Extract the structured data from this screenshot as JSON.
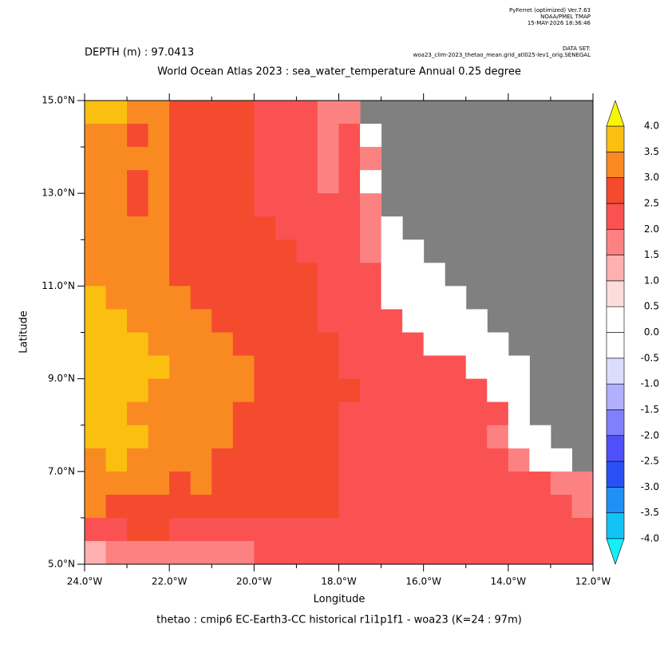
{
  "chart_data": {
    "type": "heatmap",
    "title": "World Ocean Atlas 2023 : sea_water_temperature Annual  0.25 degree",
    "subtitle": "DEPTH (m) : 97.0413",
    "header": [
      "PyFerret (optimized) Ver.7.63",
      "NOAA/PMEL TMAP",
      "15-MAY-2026 18:36:46"
    ],
    "dataset_label": "DATA SET:",
    "dataset": "woa23_clim-2023_thetao_mean.grid_atl025-lev1_orig.SENEGAL",
    "footer": "thetao : cmip6 EC-Earth3-CC historical r1i1p1f1 - woa23  (K=24 : 97m)",
    "xlabel": "Longitude",
    "ylabel": "Latitude",
    "xlim": [
      -24,
      -12
    ],
    "ylim": [
      5,
      15
    ],
    "xticks": [
      {
        "value": -24,
        "label": "24.0°W"
      },
      {
        "value": -22,
        "label": "22.0°W"
      },
      {
        "value": -20,
        "label": "20.0°W"
      },
      {
        "value": -18,
        "label": "18.0°W"
      },
      {
        "value": -16,
        "label": "16.0°W"
      },
      {
        "value": -14,
        "label": "14.0°W"
      },
      {
        "value": -12,
        "label": "12.0°W"
      }
    ],
    "yticks": [
      {
        "value": 5,
        "label": "5.0°N"
      },
      {
        "value": 7,
        "label": "7.0°N"
      },
      {
        "value": 9,
        "label": "9.0°N"
      },
      {
        "value": 11,
        "label": "11.0°N"
      },
      {
        "value": 13,
        "label": "13.0°N"
      },
      {
        "value": 15,
        "label": "15.0°N"
      }
    ],
    "xminorticks": [
      -23,
      -21,
      -19,
      -17,
      -15,
      -13
    ],
    "yminorticks": [
      6,
      8,
      10,
      12,
      14
    ],
    "x": [
      -24,
      -23.5,
      -23,
      -22.5,
      -22,
      -21.5,
      -21,
      -20.5,
      -20,
      -19.5,
      -19,
      -18.5,
      -18,
      -17.5,
      -17,
      -16.5,
      -16,
      -15.5,
      -15,
      -14.5,
      -14,
      -13.5,
      -13,
      -12.5,
      -12
    ],
    "y": [
      15,
      14.5,
      14,
      13.5,
      13,
      12.5,
      12,
      11.5,
      11,
      10.5,
      10,
      9.5,
      9,
      8.5,
      8,
      7.5,
      7,
      6.5,
      6,
      5.5,
      5
    ],
    "land_color": "#808080",
    "levels": [
      {
        "value": -4,
        "label": "-4.0"
      },
      {
        "value": -3.5,
        "label": "-3.5"
      },
      {
        "value": -3,
        "label": "-3.0"
      },
      {
        "value": -2.5,
        "label": "-2.5"
      },
      {
        "value": -2,
        "label": "-2.0"
      },
      {
        "value": -1.5,
        "label": "-1.5"
      },
      {
        "value": -1,
        "label": "-1.0"
      },
      {
        "value": -0.5,
        "label": "-0.5"
      },
      {
        "value": 0,
        "label": "0.0"
      },
      {
        "value": 0.5,
        "label": "0.5"
      },
      {
        "value": 1,
        "label": "1.0"
      },
      {
        "value": 1.5,
        "label": "1.5"
      },
      {
        "value": 2,
        "label": "2.0"
      },
      {
        "value": 2.5,
        "label": "2.5"
      },
      {
        "value": 3,
        "label": "3.0"
      },
      {
        "value": 3.5,
        "label": "3.5"
      },
      {
        "value": 4,
        "label": "4.0"
      }
    ],
    "colors": [
      "#14f0f5",
      "#14c3f5",
      "#2090f5",
      "#2a50f5",
      "#5050fa",
      "#8080fc",
      "#b0b0fe",
      "#dcdcfe",
      "#ffffff",
      "#ffffff",
      "#fedcdc",
      "#ffb0b0",
      "#fc8282",
      "#fa5252",
      "#f44b2f",
      "#f98a22",
      "#fbbf10",
      "#f8f50a"
    ],
    "z": [
      [
        3.7,
        3.7,
        3.2,
        3.2,
        2.7,
        2.7,
        2.7,
        2.7,
        2.3,
        2.3,
        2.3,
        1.8,
        1.8,
        null,
        null,
        null,
        null,
        null,
        null,
        null,
        null,
        null,
        null,
        null
      ],
      [
        3.2,
        3.2,
        2.7,
        3.2,
        2.7,
        2.7,
        2.7,
        2.7,
        2.3,
        2.3,
        2.3,
        1.8,
        2.3,
        0.2,
        null,
        null,
        null,
        null,
        null,
        null,
        null,
        null,
        null,
        null
      ],
      [
        3.2,
        3.2,
        3.2,
        3.2,
        2.7,
        2.7,
        2.7,
        2.7,
        2.3,
        2.3,
        2.3,
        1.8,
        2.3,
        1.8,
        null,
        null,
        null,
        null,
        null,
        null,
        null,
        null,
        null,
        null
      ],
      [
        3.2,
        3.2,
        2.7,
        3.2,
        2.7,
        2.7,
        2.7,
        2.7,
        2.3,
        2.3,
        2.3,
        1.8,
        2.3,
        0.2,
        null,
        null,
        null,
        null,
        null,
        null,
        null,
        null,
        null,
        null
      ],
      [
        3.2,
        3.2,
        2.7,
        3.2,
        2.7,
        2.7,
        2.7,
        2.7,
        2.3,
        2.3,
        2.3,
        2.3,
        2.3,
        1.8,
        null,
        null,
        null,
        null,
        null,
        null,
        null,
        null,
        null,
        null
      ],
      [
        3.2,
        3.2,
        3.2,
        3.2,
        2.7,
        2.7,
        2.7,
        2.7,
        2.7,
        2.3,
        2.3,
        2.3,
        2.3,
        1.8,
        0.2,
        null,
        null,
        null,
        null,
        null,
        null,
        null,
        null,
        null
      ],
      [
        3.2,
        3.2,
        3.2,
        3.2,
        2.7,
        2.7,
        2.7,
        2.7,
        2.7,
        2.7,
        2.3,
        2.3,
        2.3,
        1.8,
        0.2,
        0.2,
        null,
        null,
        null,
        null,
        null,
        null,
        null,
        null
      ],
      [
        3.2,
        3.2,
        3.2,
        3.2,
        2.7,
        2.7,
        2.7,
        2.7,
        2.7,
        2.7,
        2.7,
        2.3,
        2.3,
        2.3,
        0.2,
        0.2,
        0.2,
        null,
        null,
        null,
        null,
        null,
        null,
        null
      ],
      [
        3.7,
        3.2,
        3.2,
        3.2,
        3.2,
        2.7,
        2.7,
        2.7,
        2.7,
        2.7,
        2.7,
        2.3,
        2.3,
        2.3,
        0.2,
        0.2,
        0.2,
        0.2,
        null,
        null,
        null,
        null,
        null,
        null
      ],
      [
        3.7,
        3.7,
        3.2,
        3.2,
        3.2,
        3.2,
        2.7,
        2.7,
        2.7,
        2.7,
        2.7,
        2.3,
        2.3,
        2.3,
        2.3,
        0.2,
        0.2,
        0.2,
        0.2,
        null,
        null,
        null,
        null,
        null
      ],
      [
        3.7,
        3.7,
        3.7,
        3.2,
        3.2,
        3.2,
        3.2,
        2.7,
        2.7,
        2.7,
        2.7,
        2.7,
        2.3,
        2.3,
        2.3,
        2.3,
        0.2,
        0.2,
        0.2,
        0.2,
        null,
        null,
        null,
        null
      ],
      [
        3.7,
        3.7,
        3.7,
        3.7,
        3.2,
        3.2,
        3.2,
        3.2,
        2.7,
        2.7,
        2.7,
        2.7,
        2.3,
        2.3,
        2.3,
        2.3,
        2.3,
        2.3,
        0.2,
        0.2,
        0.2,
        null,
        null,
        null
      ],
      [
        3.7,
        3.7,
        3.7,
        3.2,
        3.2,
        3.2,
        3.2,
        3.2,
        2.7,
        2.7,
        2.7,
        2.7,
        2.7,
        2.3,
        2.3,
        2.3,
        2.3,
        2.3,
        2.3,
        0.2,
        0.2,
        null,
        null,
        null
      ],
      [
        3.7,
        3.7,
        3.2,
        3.2,
        3.2,
        3.2,
        3.2,
        2.7,
        2.7,
        2.7,
        2.7,
        2.7,
        2.3,
        2.3,
        2.3,
        2.3,
        2.3,
        2.3,
        2.3,
        2.3,
        0.2,
        null,
        null,
        null
      ],
      [
        3.7,
        3.7,
        3.7,
        3.2,
        3.2,
        3.2,
        3.2,
        2.7,
        2.7,
        2.7,
        2.7,
        2.7,
        2.3,
        2.3,
        2.3,
        2.3,
        2.3,
        2.3,
        2.3,
        1.8,
        0.2,
        0.2,
        null,
        null
      ],
      [
        3.2,
        3.7,
        3.2,
        3.2,
        3.2,
        3.2,
        2.7,
        2.7,
        2.7,
        2.7,
        2.7,
        2.7,
        2.3,
        2.3,
        2.3,
        2.3,
        2.3,
        2.3,
        2.3,
        2.3,
        1.8,
        0.2,
        0.2,
        null
      ],
      [
        3.2,
        3.2,
        3.2,
        3.2,
        2.7,
        3.2,
        2.7,
        2.7,
        2.7,
        2.7,
        2.7,
        2.7,
        2.3,
        2.3,
        2.3,
        2.3,
        2.3,
        2.3,
        2.3,
        2.3,
        2.3,
        2.3,
        1.8,
        1.8
      ],
      [
        3.2,
        2.7,
        2.7,
        2.7,
        2.7,
        2.7,
        2.7,
        2.7,
        2.7,
        2.7,
        2.7,
        2.7,
        2.3,
        2.3,
        2.3,
        2.3,
        2.3,
        2.3,
        2.3,
        2.3,
        2.3,
        2.3,
        2.3,
        1.8
      ],
      [
        2.3,
        2.3,
        2.7,
        2.7,
        2.3,
        2.3,
        2.3,
        2.3,
        2.3,
        2.3,
        2.3,
        2.3,
        2.3,
        2.3,
        2.3,
        2.3,
        2.3,
        2.3,
        2.3,
        2.3,
        2.3,
        2.3,
        2.3,
        2.3
      ],
      [
        1.2,
        1.8,
        1.8,
        1.8,
        1.8,
        1.8,
        1.8,
        1.8,
        2.3,
        2.3,
        2.3,
        2.3,
        2.3,
        2.3,
        2.3,
        2.3,
        2.3,
        2.3,
        2.3,
        2.3,
        2.3,
        2.3,
        2.3,
        2.3
      ]
    ]
  }
}
